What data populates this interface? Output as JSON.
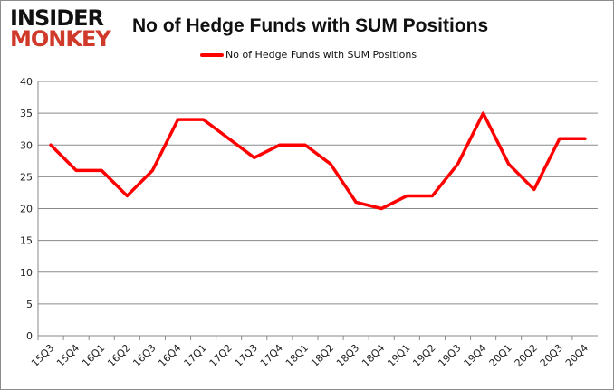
{
  "logo": {
    "line1": "INSIDER",
    "line2": "MONKEY"
  },
  "chart_data": {
    "type": "line",
    "title": "No of Hedge Funds with SUM Positions",
    "xlabel": "",
    "ylabel": "",
    "ylim": [
      0,
      40
    ],
    "yticks": [
      0,
      5,
      10,
      15,
      20,
      25,
      30,
      35,
      40
    ],
    "grid": true,
    "legend": "top",
    "color": "#ff0000",
    "categories": [
      "15Q3",
      "15Q4",
      "16Q1",
      "16Q2",
      "16Q3",
      "16Q4",
      "17Q1",
      "17Q2",
      "17Q3",
      "17Q4",
      "18Q1",
      "18Q2",
      "18Q3",
      "18Q4",
      "19Q1",
      "19Q2",
      "19Q3",
      "19Q4",
      "20Q1",
      "20Q2",
      "20Q3",
      "20Q4"
    ],
    "series": [
      {
        "name": "No of Hedge Funds with SUM Positions",
        "values": [
          30,
          26,
          26,
          22,
          26,
          34,
          34,
          31,
          28,
          30,
          30,
          27,
          21,
          20,
          22,
          22,
          27,
          35,
          27,
          23,
          31,
          31
        ]
      }
    ]
  }
}
